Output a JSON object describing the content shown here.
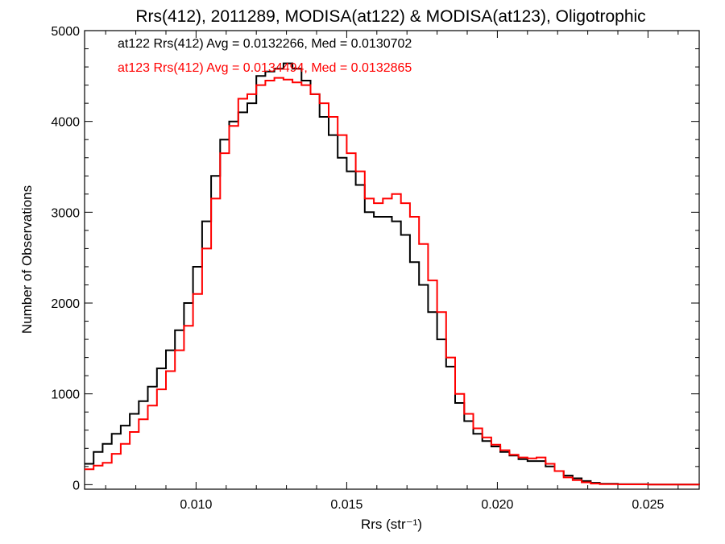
{
  "chart_data": {
    "type": "line",
    "title": "Rrs(412), 2011289, MODISA(at122) & MODISA(at123), Oligotrophic",
    "xlabel": "Rrs (str⁻¹)",
    "ylabel": "Number of Observations",
    "xlim": [
      0.0063,
      0.0267
    ],
    "ylim": [
      -50,
      5000
    ],
    "x_ticks": [
      0.01,
      0.015,
      0.02,
      0.025
    ],
    "x_tick_labels": [
      "0.010",
      "0.015",
      "0.020",
      "0.025"
    ],
    "y_ticks": [
      0,
      1000,
      2000,
      3000,
      4000,
      5000
    ],
    "y_tick_labels": [
      "0",
      "1000",
      "2000",
      "3000",
      "4000",
      "5000"
    ],
    "grid": false,
    "legend_position": "top-left",
    "series": [
      {
        "name": "at122 Rrs(412) Avg = 0.0132266, Med = 0.0130702",
        "color": "#000000",
        "points": [
          [
            0.0063,
            230
          ],
          [
            0.0066,
            360
          ],
          [
            0.0069,
            450
          ],
          [
            0.0072,
            560
          ],
          [
            0.0075,
            650
          ],
          [
            0.0078,
            780
          ],
          [
            0.0081,
            920
          ],
          [
            0.0084,
            1080
          ],
          [
            0.0087,
            1280
          ],
          [
            0.009,
            1480
          ],
          [
            0.0093,
            1700
          ],
          [
            0.0096,
            2000
          ],
          [
            0.0099,
            2400
          ],
          [
            0.0102,
            2900
          ],
          [
            0.0105,
            3400
          ],
          [
            0.0108,
            3800
          ],
          [
            0.0111,
            4000
          ],
          [
            0.0114,
            4100
          ],
          [
            0.0117,
            4200
          ],
          [
            0.012,
            4500
          ],
          [
            0.0123,
            4550
          ],
          [
            0.0126,
            4580
          ],
          [
            0.0129,
            4640
          ],
          [
            0.0132,
            4580
          ],
          [
            0.0135,
            4450
          ],
          [
            0.0138,
            4300
          ],
          [
            0.0141,
            4050
          ],
          [
            0.0144,
            3850
          ],
          [
            0.0147,
            3600
          ],
          [
            0.015,
            3450
          ],
          [
            0.0153,
            3300
          ],
          [
            0.0156,
            3000
          ],
          [
            0.0159,
            2950
          ],
          [
            0.0162,
            2950
          ],
          [
            0.0165,
            2900
          ],
          [
            0.0168,
            2750
          ],
          [
            0.0171,
            2450
          ],
          [
            0.0174,
            2200
          ],
          [
            0.0177,
            1900
          ],
          [
            0.018,
            1600
          ],
          [
            0.0183,
            1300
          ],
          [
            0.0186,
            900
          ],
          [
            0.0189,
            700
          ],
          [
            0.0192,
            560
          ],
          [
            0.0195,
            480
          ],
          [
            0.0198,
            420
          ],
          [
            0.0201,
            360
          ],
          [
            0.0204,
            320
          ],
          [
            0.0207,
            280
          ],
          [
            0.021,
            260
          ],
          [
            0.0213,
            260
          ],
          [
            0.0216,
            200
          ],
          [
            0.0219,
            150
          ],
          [
            0.0222,
            100
          ],
          [
            0.0225,
            70
          ],
          [
            0.0228,
            40
          ],
          [
            0.0231,
            20
          ],
          [
            0.0234,
            10
          ],
          [
            0.024,
            5
          ],
          [
            0.025,
            2
          ],
          [
            0.0267,
            0
          ]
        ]
      },
      {
        "name": "at123 Rrs(412) Avg = 0.0134494, Med = 0.0132865",
        "color": "#ff0000",
        "points": [
          [
            0.0063,
            170
          ],
          [
            0.0066,
            210
          ],
          [
            0.0069,
            240
          ],
          [
            0.0072,
            340
          ],
          [
            0.0075,
            450
          ],
          [
            0.0078,
            580
          ],
          [
            0.0081,
            720
          ],
          [
            0.0084,
            870
          ],
          [
            0.0087,
            1050
          ],
          [
            0.009,
            1250
          ],
          [
            0.0093,
            1480
          ],
          [
            0.0096,
            1750
          ],
          [
            0.0099,
            2100
          ],
          [
            0.0102,
            2600
          ],
          [
            0.0105,
            3150
          ],
          [
            0.0108,
            3650
          ],
          [
            0.0111,
            3950
          ],
          [
            0.0114,
            4250
          ],
          [
            0.0117,
            4300
          ],
          [
            0.012,
            4400
          ],
          [
            0.0123,
            4450
          ],
          [
            0.0126,
            4480
          ],
          [
            0.0129,
            4460
          ],
          [
            0.0132,
            4430
          ],
          [
            0.0135,
            4400
          ],
          [
            0.0138,
            4300
          ],
          [
            0.0141,
            4200
          ],
          [
            0.0144,
            4050
          ],
          [
            0.0147,
            3850
          ],
          [
            0.015,
            3650
          ],
          [
            0.0153,
            3450
          ],
          [
            0.0156,
            3150
          ],
          [
            0.0159,
            3100
          ],
          [
            0.0162,
            3150
          ],
          [
            0.0165,
            3200
          ],
          [
            0.0168,
            3100
          ],
          [
            0.0171,
            2950
          ],
          [
            0.0174,
            2650
          ],
          [
            0.0177,
            2250
          ],
          [
            0.018,
            1900
          ],
          [
            0.0183,
            1400
          ],
          [
            0.0186,
            1000
          ],
          [
            0.0189,
            780
          ],
          [
            0.0192,
            620
          ],
          [
            0.0195,
            520
          ],
          [
            0.0198,
            440
          ],
          [
            0.0201,
            380
          ],
          [
            0.0204,
            330
          ],
          [
            0.0207,
            300
          ],
          [
            0.021,
            290
          ],
          [
            0.0213,
            300
          ],
          [
            0.0216,
            230
          ],
          [
            0.0219,
            150
          ],
          [
            0.0222,
            80
          ],
          [
            0.0225,
            50
          ],
          [
            0.0228,
            25
          ],
          [
            0.0231,
            12
          ],
          [
            0.0234,
            6
          ],
          [
            0.024,
            3
          ],
          [
            0.025,
            1
          ],
          [
            0.0267,
            0
          ]
        ]
      }
    ]
  }
}
